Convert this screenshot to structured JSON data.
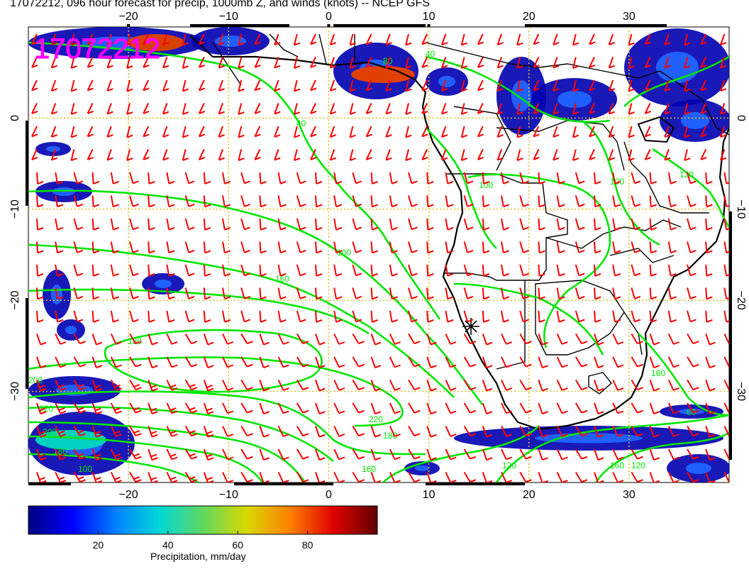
{
  "title": "17072212, 096 hour forecast for precip, 1000mb Z, and winds (knots) -- NCEP GFS",
  "stamp": "17072212",
  "axes": {
    "lon_ticks": [
      "−20",
      "−10",
      "0",
      "10",
      "20",
      "30"
    ],
    "lat_ticks": [
      "0",
      "−10",
      "−20",
      "−30"
    ],
    "lon_range": [
      -30,
      40
    ],
    "lat_range": [
      -40,
      10
    ]
  },
  "contours": {
    "labels": [
      "40",
      "40",
      "100",
      "160",
      "180",
      "220",
      "200",
      "220",
      "200",
      "180",
      "160",
      "120",
      "160",
      "120",
      "160",
      "180",
      "100",
      "100",
      "120",
      "60",
      "100",
      "80"
    ],
    "color": "#00e600"
  },
  "colors": {
    "wind_barb": "#ff0000",
    "contour": "#00e600",
    "grid": "#e0c020",
    "stamp": "#ff00ff",
    "coast": "#000000"
  },
  "colorbar": {
    "label": "Precipitation, mm/day",
    "ticks": [
      "20",
      "40",
      "60",
      "80"
    ],
    "range": [
      0,
      100
    ],
    "colors": [
      "#000080",
      "#0000ff",
      "#0080ff",
      "#00d8d8",
      "#60d860",
      "#d8d800",
      "#ff8000",
      "#e00000",
      "#600000"
    ]
  }
}
